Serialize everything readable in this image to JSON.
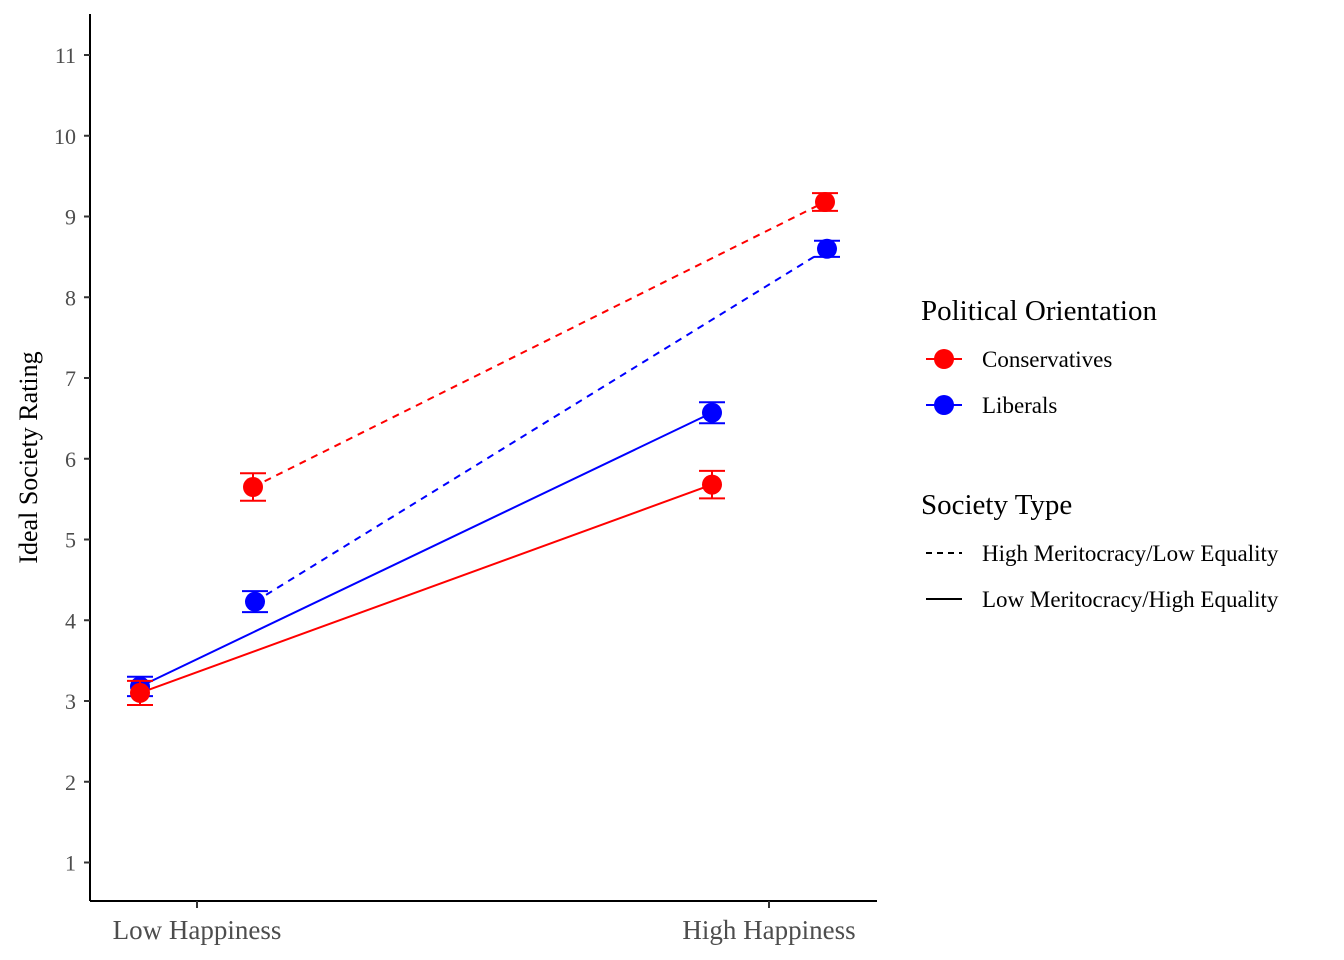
{
  "chart_data": {
    "type": "line",
    "xlabel": "",
    "ylabel": "Ideal Society Rating",
    "categories": [
      "Low Happiness",
      "High Happiness"
    ],
    "ylim": [
      0.5,
      11.5
    ],
    "yticks": [
      1,
      2,
      3,
      4,
      5,
      6,
      7,
      8,
      9,
      10,
      11
    ],
    "series": [
      {
        "name": "Conservatives",
        "society_type": "High Meritocracy/Low Equality",
        "color": "#ff0000",
        "linestyle": "dashed",
        "values": [
          5.65,
          9.18
        ],
        "errors": [
          0.17,
          0.11
        ]
      },
      {
        "name": "Liberals",
        "society_type": "High Meritocracy/Low Equality",
        "color": "#0000ff",
        "linestyle": "dashed",
        "values": [
          4.23,
          8.6
        ],
        "errors": [
          0.13,
          0.1
        ]
      },
      {
        "name": "Liberals",
        "society_type": "Low Meritocracy/High Equality",
        "color": "#0000ff",
        "linestyle": "solid",
        "values": [
          3.18,
          6.57
        ],
        "errors": [
          0.12,
          0.13
        ]
      },
      {
        "name": "Conservatives",
        "society_type": "Low Meritocracy/High Equality",
        "color": "#ff0000",
        "linestyle": "solid",
        "values": [
          3.1,
          5.68
        ],
        "errors": [
          0.15,
          0.17
        ]
      }
    ],
    "legend": {
      "position": "right",
      "color_title": "Political Orientation",
      "color_entries": [
        {
          "label": "Conservatives",
          "color": "#ff0000"
        },
        {
          "label": "Liberals",
          "color": "#0000ff"
        }
      ],
      "linetype_title": "Society Type",
      "linetype_entries": [
        {
          "label": "High Meritocracy/Low Equality",
          "linestyle": "dashed"
        },
        {
          "label": "Low Meritocracy/High Equality",
          "linestyle": "solid"
        }
      ]
    },
    "grid": false
  }
}
